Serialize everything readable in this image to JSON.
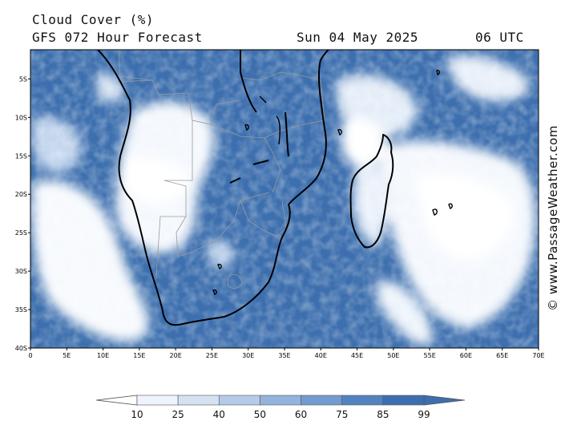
{
  "header": {
    "title": "Cloud Cover (%)",
    "subtitle": "GFS 072 Hour Forecast",
    "date": "Sun 04 May 2025",
    "time": "06 UTC"
  },
  "credit": "© www.PassageWeather.com",
  "map": {
    "lat_labels": [
      "5S",
      "10S",
      "15S",
      "20S",
      "25S",
      "30S",
      "35S",
      "40S"
    ],
    "lon_labels": [
      "0",
      "5E",
      "10E",
      "15E",
      "20E",
      "25E",
      "30E",
      "35E",
      "40E",
      "45E",
      "50E",
      "55E",
      "60E",
      "65E",
      "70E"
    ],
    "extent": {
      "lon_min": 0,
      "lon_max": 70,
      "lat_min": -40,
      "lat_max": -1.2
    }
  },
  "legend": {
    "labels": [
      "10",
      "25",
      "40",
      "50",
      "60",
      "75",
      "85",
      "99"
    ],
    "colors": [
      "#ffffff",
      "#eef4fb",
      "#d3e1f2",
      "#b4cbe8",
      "#93b3dc",
      "#729bcf",
      "#5283c0",
      "#3d6fae"
    ]
  },
  "colors": {
    "cloud_dense": "#3d6fae",
    "cloud_clear": "#ffffff",
    "coastline": "#000000",
    "borders": "#999999"
  }
}
